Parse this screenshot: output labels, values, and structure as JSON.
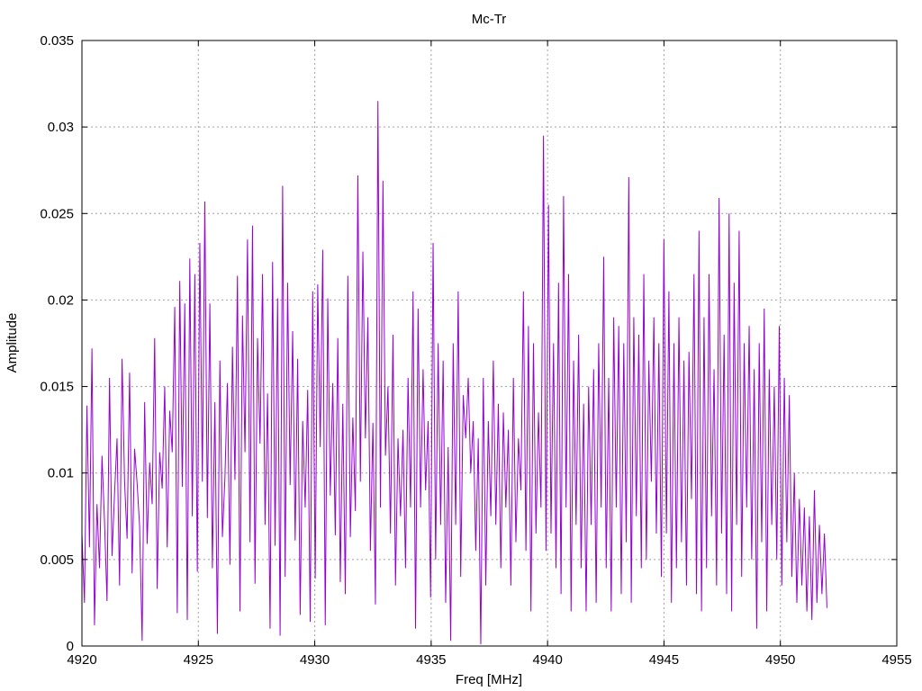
{
  "chart_data": {
    "type": "line",
    "title": "Mc-Tr",
    "xlabel": "Freq [MHz]",
    "ylabel": "Amplitude",
    "xlim": [
      4920,
      4955
    ],
    "ylim": [
      0,
      0.035
    ],
    "x_ticks": [
      "4920",
      "4925",
      "4930",
      "4935",
      "4940",
      "4945",
      "4950",
      "4955"
    ],
    "y_ticks": [
      "0",
      "0.005",
      "0.01",
      "0.015",
      "0.02",
      "0.025",
      "0.03",
      "0.035"
    ],
    "grid": true,
    "series": [
      {
        "color": "#9400d3",
        "x_start": 4920,
        "x_end": 4952,
        "values": [
          0.0065,
          0.0025,
          0.0139,
          0.0057,
          0.0172,
          0.0012,
          0.0082,
          0.0045,
          0.011,
          0.0072,
          0.0026,
          0.0155,
          0.0052,
          0.0088,
          0.012,
          0.0035,
          0.0166,
          0.0095,
          0.0062,
          0.0158,
          0.0042,
          0.0114,
          0.0094,
          0.0069,
          0.0003,
          0.0141,
          0.0059,
          0.0106,
          0.0082,
          0.0178,
          0.0033,
          0.0112,
          0.0091,
          0.015,
          0.0057,
          0.0136,
          0.0112,
          0.0196,
          0.0019,
          0.0211,
          0.0092,
          0.0198,
          0.0015,
          0.0224,
          0.0075,
          0.0215,
          0.0043,
          0.0233,
          0.0095,
          0.0257,
          0.0074,
          0.0198,
          0.0045,
          0.0141,
          0.0007,
          0.0165,
          0.0063,
          0.0097,
          0.0152,
          0.0047,
          0.0173,
          0.0096,
          0.0214,
          0.002,
          0.0191,
          0.0112,
          0.0235,
          0.006,
          0.0243,
          0.0036,
          0.0178,
          0.0117,
          0.0215,
          0.007,
          0.0146,
          0.001,
          0.0222,
          0.0058,
          0.0201,
          0.0006,
          0.0266,
          0.004,
          0.021,
          0.0093,
          0.0182,
          0.0061,
          0.0166,
          0.0018,
          0.013,
          0.008,
          0.0148,
          0.0014,
          0.0205,
          0.0039,
          0.0209,
          0.0115,
          0.0229,
          0.0012,
          0.0201,
          0.0087,
          0.0152,
          0.0064,
          0.0178,
          0.0037,
          0.014,
          0.003,
          0.0214,
          0.0063,
          0.0132,
          0.0078,
          0.0272,
          0.0095,
          0.0228,
          0.012,
          0.019,
          0.0055,
          0.0129,
          0.0024,
          0.0315,
          0.008,
          0.0269,
          0.011,
          0.015,
          0.0065,
          0.018,
          0.0035,
          0.012,
          0.0075,
          0.0125,
          0.0045,
          0.0155,
          0.008,
          0.0205,
          0.001,
          0.0195,
          0.008,
          0.016,
          0.009,
          0.013,
          0.0028,
          0.0233,
          0.005,
          0.0175,
          0.007,
          0.0165,
          0.0025,
          0.0115,
          0.0003,
          0.0175,
          0.007,
          0.0205,
          0.004,
          0.0145,
          0.012,
          0.0155,
          0.01,
          0.013,
          0.0055,
          0.012,
          0.0001,
          0.0155,
          0.0035,
          0.013,
          0.0075,
          0.0165,
          0.007,
          0.014,
          0.0045,
          0.0135,
          0.008,
          0.0125,
          0.0035,
          0.0155,
          0.006,
          0.012,
          0.009,
          0.0205,
          0.0055,
          0.0185,
          0.002,
          0.0175,
          0.0065,
          0.0135,
          0.008,
          0.0295,
          0.0055,
          0.0255,
          0.0065,
          0.0175,
          0.0045,
          0.021,
          0.003,
          0.026,
          0.008,
          0.0215,
          0.002,
          0.0165,
          0.007,
          0.018,
          0.0045,
          0.014,
          0.002,
          0.015,
          0.007,
          0.016,
          0.0025,
          0.0175,
          0.008,
          0.0225,
          0.0045,
          0.0155,
          0.002,
          0.019,
          0.008,
          0.0185,
          0.003,
          0.0175,
          0.006,
          0.0271,
          0.0025,
          0.019,
          0.0075,
          0.018,
          0.0045,
          0.0215,
          0.005,
          0.0165,
          0.0095,
          0.019,
          0.0065,
          0.0175,
          0.004,
          0.0235,
          0.0065,
          0.0205,
          0.0025,
          0.0175,
          0.0045,
          0.019,
          0.006,
          0.0165,
          0.0035,
          0.017,
          0.0085,
          0.0215,
          0.003,
          0.024,
          0.002,
          0.019,
          0.0045,
          0.0215,
          0.0075,
          0.016,
          0.0035,
          0.0259,
          0.0065,
          0.018,
          0.003,
          0.025,
          0.002,
          0.021,
          0.007,
          0.024,
          0.004,
          0.0175,
          0.008,
          0.0185,
          0.005,
          0.016,
          0.001,
          0.0175,
          0.006,
          0.0195,
          0.002,
          0.016,
          0.007,
          0.015,
          0.005,
          0.0185,
          0.0035,
          0.0155,
          0.006,
          0.0145,
          0.004,
          0.01,
          0.0025,
          0.0085,
          0.0035,
          0.008,
          0.002,
          0.0075,
          0.0015,
          0.009,
          0.0025,
          0.007,
          0.003,
          0.0065,
          0.0022
        ]
      }
    ]
  }
}
